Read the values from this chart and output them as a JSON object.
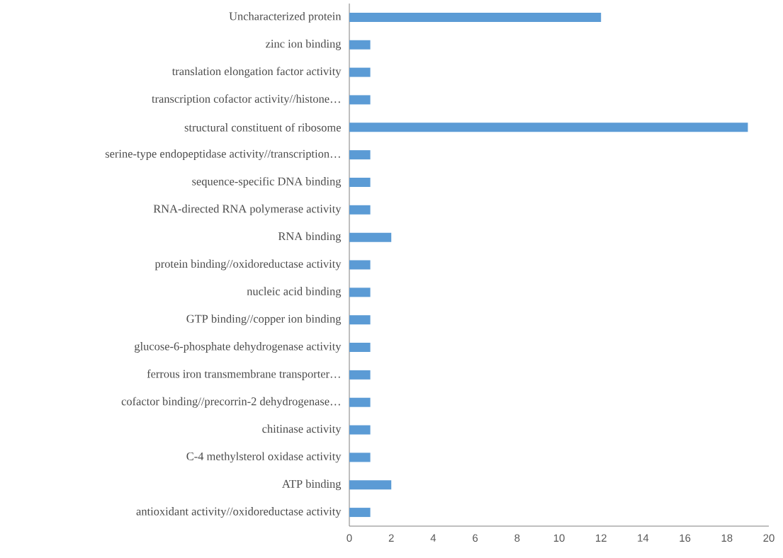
{
  "chart_data": {
    "type": "bar",
    "orientation": "horizontal",
    "color": "#5b9bd5",
    "categories": [
      "Uncharacterized protein",
      "zinc ion binding",
      "translation elongation factor activity",
      "transcription cofactor activity//histone…",
      "structural constituent of ribosome",
      "serine-type endopeptidase activity//transcription…",
      "sequence-specific DNA binding",
      "RNA-directed RNA polymerase activity",
      "RNA binding",
      "protein binding//oxidoreductase activity",
      "nucleic acid binding",
      "GTP binding//copper ion binding",
      "glucose-6-phosphate dehydrogenase activity",
      "ferrous iron transmembrane transporter…",
      "cofactor binding//precorrin-2 dehydrogenase…",
      "chitinase activity",
      "C-4 methylsterol oxidase activity",
      "ATP binding",
      "antioxidant activity//oxidoreductase activity"
    ],
    "values": [
      12,
      1,
      1,
      1,
      19,
      1,
      1,
      1,
      2,
      1,
      1,
      1,
      1,
      1,
      1,
      1,
      1,
      2,
      1
    ],
    "xlim": [
      0,
      20
    ],
    "xticks": [
      0,
      2,
      4,
      6,
      8,
      10,
      12,
      14,
      16,
      18,
      20
    ]
  }
}
